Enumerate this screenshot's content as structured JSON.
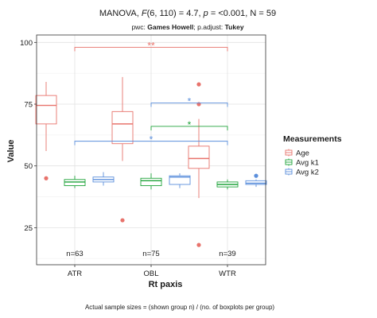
{
  "chart_data": {
    "type": "boxplot",
    "title_parts": {
      "prefix": "MANOVA, ",
      "f_symbol": "F",
      "df": "(6, 110) = 4.7, ",
      "p_symbol": "p",
      "rest": " = <0.001, N = 59"
    },
    "subtitle_parts": {
      "pwc_label": "pwc: ",
      "pwc_value": "Games Howell",
      "sep": "; ",
      "padj_label": "p.adjust: ",
      "padj_value": "Tukey"
    },
    "xlabel": "Rt paxis",
    "ylabel": "Value",
    "caption": "Actual sample sizes = (shown group n) / (no. of boxplots per group)",
    "ylim": [
      10,
      103
    ],
    "yticks": [
      25,
      50,
      75,
      100
    ],
    "categories": [
      "ATR",
      "OBL",
      "WTR"
    ],
    "group_n": [
      "n=63",
      "n=75",
      "n=39"
    ],
    "legend": {
      "title": "Measurements",
      "position": "right"
    },
    "series": [
      {
        "name": "Age",
        "color": "#e8736c",
        "boxes": [
          {
            "min": 56,
            "q1": 67,
            "median": 74.5,
            "q3": 78.5,
            "max": 84,
            "outliers": [
              45
            ]
          },
          {
            "min": 52,
            "q1": 59,
            "median": 67,
            "q3": 72,
            "max": 86,
            "outliers": [
              28
            ]
          },
          {
            "min": 37,
            "q1": 49,
            "median": 53,
            "q3": 58,
            "max": 69,
            "outliers": [
              83,
              75,
              18
            ]
          }
        ]
      },
      {
        "name": "Avg k1",
        "color": "#1fa33a",
        "boxes": [
          {
            "min": 41,
            "q1": 42,
            "median": 43.5,
            "q3": 44.5,
            "max": 46,
            "outliers": []
          },
          {
            "min": 40.5,
            "q1": 42,
            "median": 44,
            "q3": 45,
            "max": 47,
            "outliers": []
          },
          {
            "min": 40.5,
            "q1": 41.5,
            "median": 42.5,
            "q3": 43.5,
            "max": 44.5,
            "outliers": []
          }
        ]
      },
      {
        "name": "Avg k2",
        "color": "#5b8fdc",
        "boxes": [
          {
            "min": 42,
            "q1": 43.5,
            "median": 44.5,
            "q3": 45.5,
            "max": 47.5,
            "outliers": []
          },
          {
            "min": 41,
            "q1": 42.5,
            "median": 45.5,
            "q3": 46,
            "max": 47,
            "outliers": []
          },
          {
            "min": 41.5,
            "q1": 42.5,
            "median": 43,
            "q3": 44,
            "max": 44.5,
            "outliers": [
              46
            ]
          }
        ]
      }
    ],
    "brackets": [
      {
        "from": "ATR",
        "to": "WTR",
        "y": 98,
        "label": "**",
        "series": "Age"
      },
      {
        "from": "OBL",
        "to": "WTR",
        "y": 75.5,
        "label": "*",
        "series": "Avg k2"
      },
      {
        "from": "OBL",
        "to": "WTR",
        "y": 66,
        "label": "*",
        "series": "Avg k1"
      },
      {
        "from": "ATR",
        "to": "WTR",
        "y": 60,
        "label": "*",
        "series": "Avg k2"
      }
    ],
    "grid": true
  }
}
